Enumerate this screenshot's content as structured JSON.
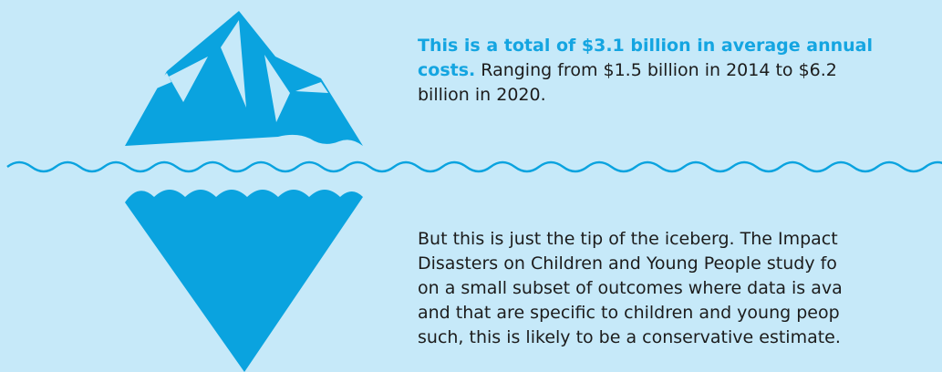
{
  "summary": {
    "highlight": "This is a total of $3.1 billion in average annual costs.",
    "text": "Ranging from $1.5 billion in 2014 to $6.2 billion in 2020."
  },
  "body": {
    "lines": [
      "But this is just the tip of the iceberg. The Impact",
      "Disasters on Children and Young People study fo",
      "on a small subset of outcomes where data is ava",
      "and that are specific to children and young peop",
      "such, this is likely to be a conservative estimate."
    ]
  }
}
